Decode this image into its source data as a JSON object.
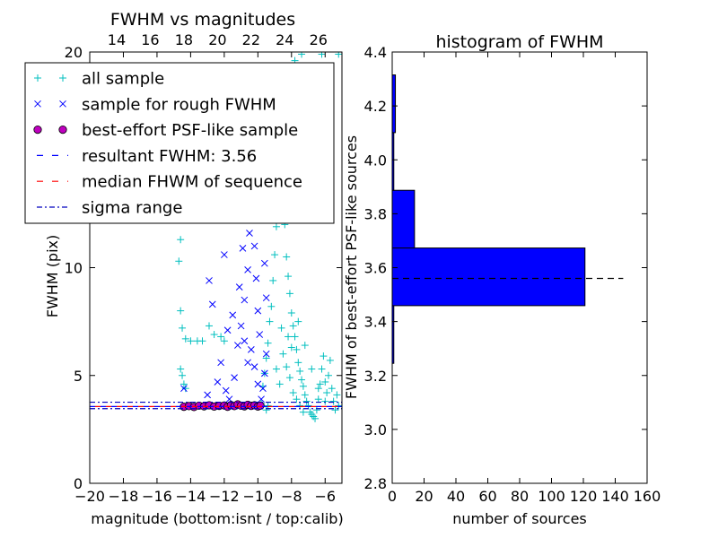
{
  "chart_data": [
    {
      "type": "scatter",
      "title": "FWHM vs magnitudes",
      "xlabel": "magnitude (bottom:isnt / top:calib)",
      "ylabel": "FWHM (pix)",
      "xlim": [
        -20,
        -5
      ],
      "ylim": [
        0,
        20
      ],
      "grid": false,
      "legend_position": "top-left",
      "x_ticks": [
        "−20",
        "−18",
        "−16",
        "−14",
        "−12",
        "−10",
        "−8",
        "−6"
      ],
      "x_tick_values": [
        -20,
        -18,
        -16,
        -14,
        -12,
        -10,
        -8,
        -6
      ],
      "y_ticks": [
        "0",
        "5",
        "10",
        "20"
      ],
      "y_tick_values": [
        0,
        5,
        10,
        20
      ],
      "top_x_ticks": [
        "14",
        "16",
        "18",
        "20",
        "22",
        "24",
        "26"
      ],
      "top_x_tick_values": [
        14,
        16,
        18,
        20,
        22,
        24,
        26
      ],
      "top_xlim": [
        12.4,
        27.4
      ],
      "series": [
        {
          "name": "all sample",
          "marker": "+",
          "color": "#00bfbf",
          "description": "dense cloud between x=-9.5 and -5, FWHM 3 to 20; sparse points between x=-15 and -10",
          "points": [
            [
              -14.6,
              11.3
            ],
            [
              -14.7,
              10.3
            ],
            [
              -14.6,
              8.0
            ],
            [
              -14.5,
              7.2
            ],
            [
              -14.3,
              6.7
            ],
            [
              -14.0,
              6.6
            ],
            [
              -13.6,
              6.6
            ],
            [
              -13.3,
              6.6
            ],
            [
              -12.9,
              7.3
            ],
            [
              -12.6,
              6.9
            ],
            [
              -12.2,
              6.8
            ],
            [
              -12.0,
              6.6
            ],
            [
              -14.6,
              5.3
            ],
            [
              -14.5,
              5.0
            ],
            [
              -14.4,
              4.6
            ],
            [
              -14.3,
              4.4
            ],
            [
              -9.7,
              4.5
            ],
            [
              -9.6,
              5.1
            ],
            [
              -9.5,
              5.8
            ],
            [
              -9.4,
              6.5
            ],
            [
              -9.3,
              7.5
            ],
            [
              -9.2,
              8.2
            ],
            [
              -9.1,
              9.4
            ],
            [
              -9.0,
              10.6
            ],
            [
              -8.9,
              11.9
            ],
            [
              -8.8,
              12.9
            ],
            [
              -8.7,
              14.1
            ],
            [
              -8.6,
              15.2
            ],
            [
              -8.5,
              15.8
            ],
            [
              -8.4,
              12.0
            ],
            [
              -8.3,
              10.5
            ],
            [
              -8.2,
              9.6
            ],
            [
              -8.1,
              8.8
            ],
            [
              -8.0,
              7.9
            ],
            [
              -7.9,
              7.3
            ],
            [
              -7.8,
              6.8
            ],
            [
              -7.7,
              6.2
            ],
            [
              -7.6,
              5.6
            ],
            [
              -7.5,
              5.2
            ],
            [
              -7.4,
              4.8
            ],
            [
              -7.3,
              4.5
            ],
            [
              -7.2,
              4.1
            ],
            [
              -7.1,
              3.8
            ],
            [
              -7.0,
              3.6
            ],
            [
              -6.9,
              3.3
            ],
            [
              -6.8,
              3.2
            ],
            [
              -6.7,
              3.1
            ],
            [
              -6.6,
              3.0
            ],
            [
              -6.5,
              3.4
            ],
            [
              -6.4,
              3.9
            ],
            [
              -6.3,
              4.6
            ],
            [
              -6.2,
              5.3
            ],
            [
              -6.1,
              5.9
            ],
            [
              -6.0,
              4.7
            ],
            [
              -5.9,
              4.2
            ],
            [
              -5.8,
              5.0
            ],
            [
              -5.7,
              5.7
            ],
            [
              -5.6,
              4.4
            ],
            [
              -5.5,
              3.8
            ],
            [
              -5.4,
              3.4
            ],
            [
              -5.3,
              4.1
            ],
            [
              -5.2,
              3.6
            ],
            [
              -9.3,
              14.6
            ],
            [
              -9.2,
              13.2
            ],
            [
              -9.0,
              16.5
            ],
            [
              -8.8,
              17.2
            ],
            [
              -8.6,
              18.5
            ],
            [
              -7.8,
              19.6
            ],
            [
              -7.4,
              19.9
            ],
            [
              -6.9,
              19.0
            ],
            [
              -6.2,
              19.9
            ],
            [
              -5.2,
              19.9
            ],
            [
              -8.9,
              5.3
            ],
            [
              -8.7,
              4.6
            ],
            [
              -8.5,
              6.0
            ],
            [
              -8.3,
              5.4
            ],
            [
              -8.1,
              4.9
            ],
            [
              -7.9,
              4.2
            ],
            [
              -7.7,
              3.9
            ],
            [
              -7.5,
              3.6
            ],
            [
              -7.3,
              3.3
            ],
            [
              -8.6,
              7.2
            ],
            [
              -8.2,
              6.8
            ],
            [
              -8.0,
              6.3
            ],
            [
              -7.6,
              7.5
            ],
            [
              -7.2,
              6.4
            ],
            [
              -6.8,
              5.3
            ],
            [
              -6.4,
              4.4
            ],
            [
              -6.0,
              3.8
            ],
            [
              -9.5,
              3.4
            ],
            [
              -9.4,
              3.6
            ],
            [
              -9.8,
              3.7
            ]
          ]
        },
        {
          "name": "sample for rough FWHM",
          "marker": "x",
          "color": "#0000ff",
          "description": "points between x=-14.5 and -9.5, FWHM 3.5 to 15",
          "points": [
            [
              -14.4,
              4.4
            ],
            [
              -13.0,
              4.1
            ],
            [
              -12.4,
              4.7
            ],
            [
              -12.7,
              8.3
            ],
            [
              -12.9,
              9.4
            ],
            [
              -12.0,
              10.6
            ],
            [
              -11.8,
              7.1
            ],
            [
              -11.5,
              7.8
            ],
            [
              -11.3,
              12.2
            ],
            [
              -11.1,
              9.1
            ],
            [
              -10.9,
              10.9
            ],
            [
              -10.8,
              8.5
            ],
            [
              -10.6,
              9.9
            ],
            [
              -10.5,
              11.6
            ],
            [
              -10.4,
              12.8
            ],
            [
              -10.3,
              13.7
            ],
            [
              -10.2,
              11.0
            ],
            [
              -10.1,
              9.5
            ],
            [
              -10.0,
              8.0
            ],
            [
              -9.9,
              6.9
            ],
            [
              -9.8,
              13.4
            ],
            [
              -9.7,
              14.7
            ],
            [
              -9.6,
              12.4
            ],
            [
              -9.6,
              10.2
            ],
            [
              -9.5,
              8.6
            ],
            [
              -9.5,
              6.0
            ],
            [
              -9.6,
              5.1
            ],
            [
              -9.7,
              4.4
            ],
            [
              -9.8,
              3.9
            ],
            [
              -10.0,
              4.6
            ],
            [
              -10.2,
              5.4
            ],
            [
              -10.4,
              6.2
            ],
            [
              -10.6,
              5.6
            ],
            [
              -10.8,
              6.6
            ],
            [
              -11.0,
              7.3
            ],
            [
              -11.2,
              6.4
            ],
            [
              -11.4,
              4.9
            ],
            [
              -10.2,
              14.0
            ],
            [
              -9.9,
              14.2
            ],
            [
              -11.6,
              13.2
            ],
            [
              -12.2,
              5.6
            ],
            [
              -11.9,
              4.3
            ],
            [
              -11.7,
              3.9
            ]
          ]
        },
        {
          "name": "best-effort PSF-like sample",
          "marker": "o",
          "color": "#bf00bf",
          "description": "row of points along FWHM ~3.6 between x=-14.5 and -9.8",
          "points": [
            [
              -14.4,
              3.55
            ],
            [
              -14.1,
              3.58
            ],
            [
              -13.8,
              3.54
            ],
            [
              -13.5,
              3.6
            ],
            [
              -13.2,
              3.57
            ],
            [
              -12.9,
              3.62
            ],
            [
              -12.6,
              3.56
            ],
            [
              -12.3,
              3.59
            ],
            [
              -12.0,
              3.61
            ],
            [
              -11.8,
              3.55
            ],
            [
              -11.6,
              3.63
            ],
            [
              -11.4,
              3.58
            ],
            [
              -11.2,
              3.66
            ],
            [
              -11.0,
              3.6
            ],
            [
              -10.8,
              3.57
            ],
            [
              -10.6,
              3.64
            ],
            [
              -10.4,
              3.59
            ],
            [
              -10.2,
              3.62
            ],
            [
              -10.0,
              3.56
            ],
            [
              -9.85,
              3.6
            ]
          ]
        }
      ],
      "lines": [
        {
          "name": "resultant FWHM: 3.56",
          "y": 3.56,
          "style": "dashed",
          "color": "#0000ff"
        },
        {
          "name": "median FHWM of sequence",
          "y": 3.56,
          "style": "dashed",
          "color": "#ff0000"
        },
        {
          "name": "sigma range",
          "y": [
            3.46,
            3.76
          ],
          "style": "dashdot",
          "color": "#0000bf"
        }
      ]
    },
    {
      "type": "bar",
      "orientation": "horizontal",
      "title": "histogram of FWHM",
      "xlabel": "number of sources",
      "ylabel": "FWHM of best-effort PSF-like sources",
      "xlim": [
        0,
        160
      ],
      "ylim": [
        2.8,
        4.4
      ],
      "grid": false,
      "x_ticks": [
        "0",
        "20",
        "40",
        "60",
        "80",
        "100",
        "120",
        "140",
        "160"
      ],
      "x_tick_values": [
        0,
        20,
        40,
        60,
        80,
        100,
        120,
        140,
        160
      ],
      "y_ticks": [
        "2.8",
        "3.0",
        "3.2",
        "3.4",
        "3.6",
        "3.8",
        "4.0",
        "4.2",
        "4.4"
      ],
      "y_tick_values": [
        2.8,
        3.0,
        3.2,
        3.4,
        3.6,
        3.8,
        4.0,
        4.2,
        4.4
      ],
      "bar_color": "#0000ff",
      "bins": [
        {
          "y0": 3.245,
          "y1": 3.459,
          "count": 1
        },
        {
          "y0": 3.459,
          "y1": 3.673,
          "count": 121
        },
        {
          "y0": 3.673,
          "y1": 3.887,
          "count": 14
        },
        {
          "y0": 3.887,
          "y1": 4.101,
          "count": 1
        },
        {
          "y0": 4.101,
          "y1": 4.315,
          "count": 2
        }
      ],
      "reference_line": {
        "y": 3.56,
        "x_range": [
          0,
          145
        ],
        "style": "dashed",
        "color": "#000000"
      }
    }
  ]
}
